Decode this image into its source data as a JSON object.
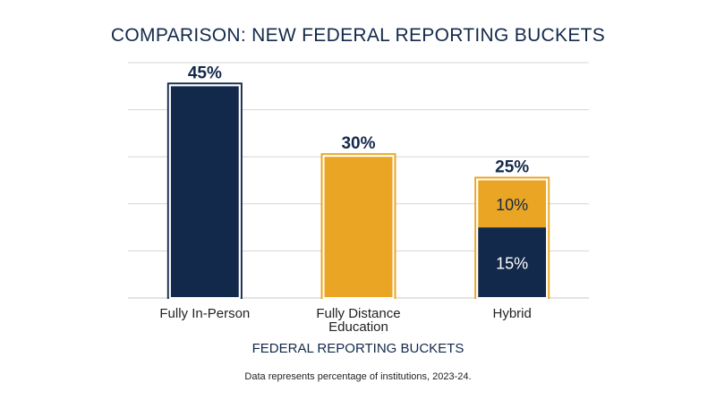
{
  "chart_data": {
    "type": "bar",
    "stacked": true,
    "title": "COMPARISON: NEW FEDERAL REPORTING BUCKETS",
    "xlabel": "FEDERAL REPORTING BUCKETS",
    "ylabel": "",
    "footnote": "Data represents percentage of institutions, 2023-24.",
    "categories": [
      [
        "Fully In-Person"
      ],
      [
        "Fully Distance",
        "Education"
      ],
      [
        "Hybrid"
      ]
    ],
    "ylim": [
      0,
      50
    ],
    "grid": true,
    "bars": [
      {
        "total": 45,
        "total_label": "45%",
        "segments": [
          {
            "value": 45,
            "color": "#13294b",
            "label": ""
          }
        ]
      },
      {
        "total": 30,
        "total_label": "30%",
        "segments": [
          {
            "value": 30,
            "color": "#eaa524",
            "label": ""
          }
        ]
      },
      {
        "total": 25,
        "total_label": "25%",
        "segments": [
          {
            "value": 15,
            "color": "#13294b",
            "label": "15%"
          },
          {
            "value": 10,
            "color": "#eaa524",
            "label": "10%"
          }
        ]
      }
    ],
    "colors": {
      "navy": "#13294b",
      "gold": "#eaa524",
      "grid": "#d4d4d4"
    }
  }
}
